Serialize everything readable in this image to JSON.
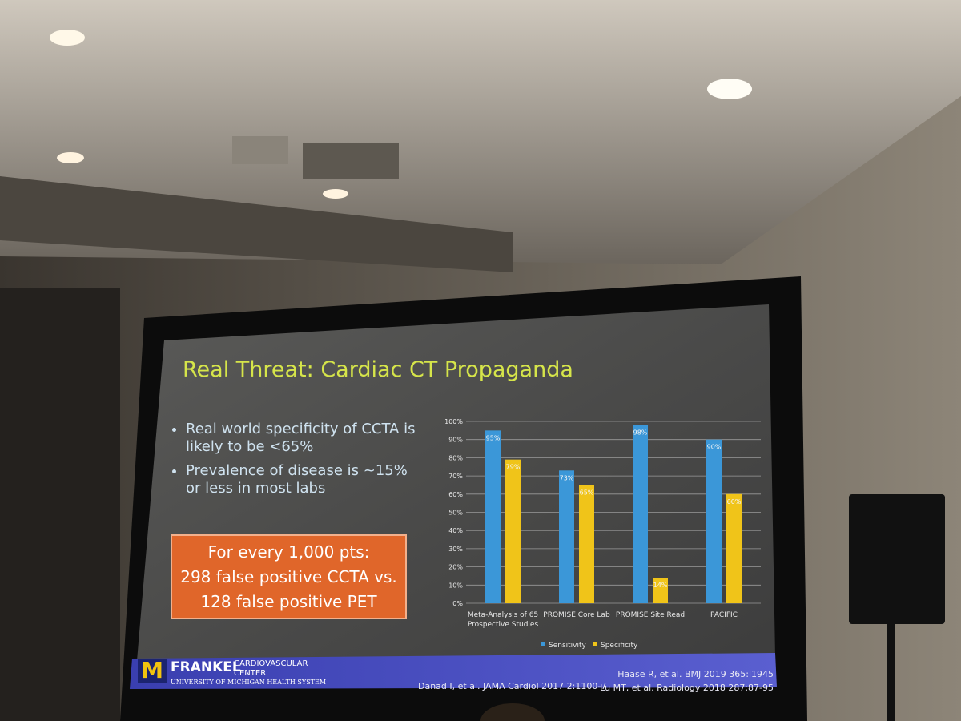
{
  "slide": {
    "title": "Real Threat: Cardiac CT Propaganda",
    "bullets": [
      "Real world specificity of CCTA is likely to be <65%",
      "Prevalence of disease is ~15% or less in most labs"
    ],
    "callout": [
      "For every 1,000 pts:",
      "298 false positive CCTA vs.",
      "128 false positive PET"
    ],
    "logo": {
      "mark": "M",
      "name": "FRANKEL",
      "sub1": "CARDIOVASCULAR",
      "sub2": "CENTER",
      "org": "UNIVERSITY OF MICHIGAN HEALTH SYSTEM"
    },
    "citations": [
      "Danad I, et al. JAMA Cardiol 2017 2:1100-7",
      "Haase R, et al. BMJ 2019 365:l1945",
      "Lu MT, et al. Radiology 2018 287:87-95"
    ]
  },
  "chart_data": {
    "type": "bar",
    "categories": [
      "Meta-Analysis of 65 Prospective Studies",
      "PROMISE Core Lab",
      "PROMISE Site Read",
      "PACIFIC"
    ],
    "series": [
      {
        "name": "Sensitivity",
        "color": "#3b97d8",
        "values": [
          95,
          73,
          98,
          90
        ],
        "value_labels": [
          "95%",
          "73%",
          "98%",
          "90%"
        ]
      },
      {
        "name": "Specificity",
        "color": "#f0c419",
        "values": [
          79,
          65,
          14,
          60
        ],
        "value_labels": [
          "79%",
          "65%",
          "14%",
          "60%"
        ]
      }
    ],
    "ylim": [
      0,
      100
    ],
    "yticks": [
      {
        "value": 0,
        "label": "0%"
      },
      {
        "value": 10,
        "label": "10%"
      },
      {
        "value": 20,
        "label": "20%"
      },
      {
        "value": 30,
        "label": "30%"
      },
      {
        "value": 40,
        "label": "40%"
      },
      {
        "value": 50,
        "label": "50%"
      },
      {
        "value": 60,
        "label": "60%"
      },
      {
        "value": 70,
        "label": "70%"
      },
      {
        "value": 80,
        "label": "80%"
      },
      {
        "value": 90,
        "label": "90%"
      },
      {
        "value": 100,
        "label": "100%"
      }
    ],
    "grid": true,
    "legend": "bottom"
  }
}
